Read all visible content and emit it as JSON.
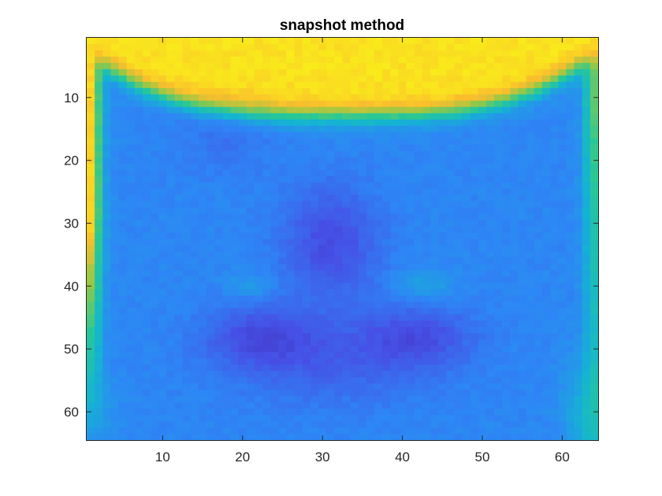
{
  "chart_data": {
    "type": "heatmap",
    "title": "snapshot method",
    "xlabel": "",
    "ylabel": "",
    "colormap": "parula",
    "grid": false,
    "rows": 64,
    "cols": 64,
    "y_axis_reversed": true,
    "x_ticks": [
      10,
      20,
      30,
      40,
      50,
      60
    ],
    "x_tick_labels": [
      "10",
      "20",
      "30",
      "40",
      "50",
      "60"
    ],
    "y_ticks": [
      10,
      20,
      30,
      40,
      50,
      60
    ],
    "y_tick_labels": [
      "10",
      "20",
      "30",
      "40",
      "50",
      "60"
    ],
    "xlim": [
      0.5,
      64.5
    ],
    "ylim": [
      0.5,
      64.5
    ],
    "value_range": [
      0,
      1
    ],
    "description_regions": {
      "top_band": "high (yellow)",
      "left_right_edges": "medium-high (yellow/orange to cyan)",
      "interior_face": "low (blue)",
      "eyes_nose_mouth": "lowest (dark blue)",
      "eye_highlights": "medium-low (light blue)"
    }
  }
}
